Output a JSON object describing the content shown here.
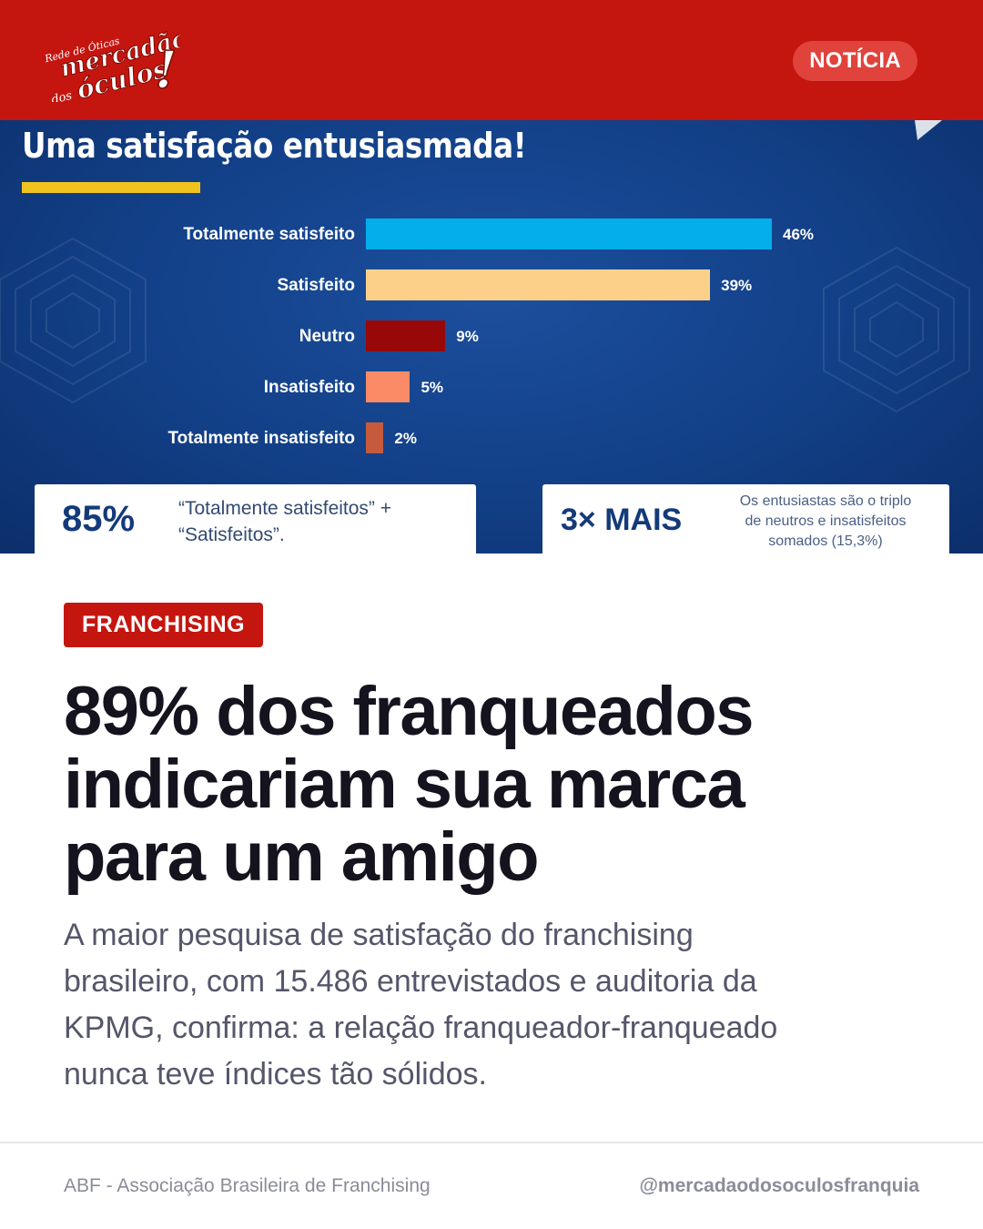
{
  "header": {
    "logo": {
      "small_text": "Rede de Óticas",
      "line1": "mercadão",
      "line2": "dos",
      "line3": "óculos",
      "exclaim": "!"
    },
    "badge": "NOTÍCIA"
  },
  "infographic": {
    "title": "Uma satisfação entusiasmada!",
    "colors": {
      "background": "#123f86",
      "accent": "#f1c31f"
    },
    "bars": [
      {
        "label": "Totalmente satisfeito",
        "value": 46,
        "display": "46%",
        "color": "#03aeea"
      },
      {
        "label": "Satisfeito",
        "value": 39,
        "display": "39%",
        "color": "#fdd08a"
      },
      {
        "label": "Neutro",
        "value": 9,
        "display": "9%",
        "color": "#980808"
      },
      {
        "label": "Insatisfeito",
        "value": 5,
        "display": "5%",
        "color": "#fb8b66"
      },
      {
        "label": "Totalmente insatisfeito",
        "value": 2,
        "display": "2%",
        "color": "#c65a3c"
      }
    ],
    "stat_left": {
      "big": "85%",
      "line1": "“Totalmente satisfeitos” +",
      "line2": "“Satisfeitos”."
    },
    "stat_right": {
      "big": "3× MAIS",
      "line1": "Os entusiastas são o triplo",
      "line2": "de neutros e insatisfeitos",
      "line3": "somados (15,3%)"
    }
  },
  "article": {
    "tag": "FRANCHISING",
    "headline_lines": [
      "89% dos franqueados",
      "indicariam sua marca",
      "para um amigo"
    ],
    "lede_lines": [
      "A maior pesquisa de satisfação do franchising",
      "brasileiro, com 15.486 entrevistados e auditoria da",
      "KPMG, confirma: a relação franqueador-franqueado",
      "nunca teve índices tão sólidos."
    ]
  },
  "footer": {
    "source": "ABF - Associação Brasileira de Franchising",
    "handle": "@mercadaodosoculosfranquia"
  }
}
